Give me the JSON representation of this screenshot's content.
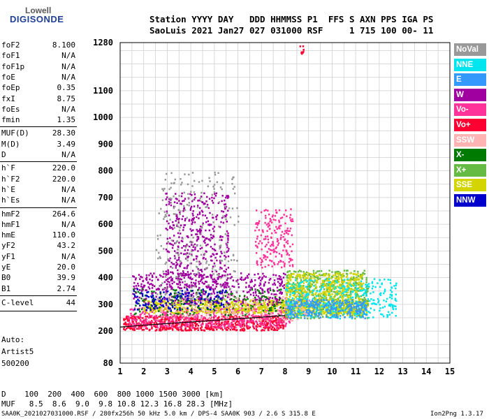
{
  "logo": {
    "line1": "Lowell",
    "line2": "DIGISONDE"
  },
  "header": {
    "row1": "Station YYYY DAY   DDD HHMMSS P1  FFS S AXN PPS IGA PS",
    "row2": "SaoLuis 2021 Jan27 027 031000 RSF     1 715 100 00- 11"
  },
  "params_group1": [
    {
      "name": "foF2",
      "value": "8.100"
    },
    {
      "name": "foF1",
      "value": "N/A"
    },
    {
      "name": "foF1p",
      "value": "N/A"
    },
    {
      "name": "foE",
      "value": "N/A"
    },
    {
      "name": "foEp",
      "value": "0.35"
    },
    {
      "name": "fxI",
      "value": "8.75"
    },
    {
      "name": "foEs",
      "value": "N/A"
    },
    {
      "name": "fmin",
      "value": "1.35"
    }
  ],
  "params_group2": [
    {
      "name": "MUF(D)",
      "value": "28.30"
    },
    {
      "name": "M(D)",
      "value": "3.49"
    },
    {
      "name": "D",
      "value": "N/A"
    }
  ],
  "params_group3": [
    {
      "name": "h`F",
      "value": "220.0"
    },
    {
      "name": "h`F2",
      "value": "220.0"
    },
    {
      "name": "h`E",
      "value": "N/A"
    },
    {
      "name": "h`Es",
      "value": "N/A"
    }
  ],
  "params_group4": [
    {
      "name": "hmF2",
      "value": "264.6"
    },
    {
      "name": "hmF1",
      "value": "N/A"
    },
    {
      "name": "hmE",
      "value": "110.0"
    },
    {
      "name": "yF2",
      "value": "43.2"
    },
    {
      "name": "yF1",
      "value": "N/A"
    },
    {
      "name": "yE",
      "value": "20.0"
    },
    {
      "name": "B0",
      "value": "39.9"
    },
    {
      "name": "B1",
      "value": "2.74"
    }
  ],
  "clevel": {
    "name": "C-level",
    "value": "44"
  },
  "auto": {
    "line1": "Auto:",
    "line2": "Artist5",
    "line3": "500200"
  },
  "bottom": {
    "d_row": "D    100  200  400  600  800 1000 1500 3000 [km]",
    "muf_row": "MUF   8.5  8.6  9.0  9.8 10.8 12.3 16.8 28.3 [MHz]"
  },
  "footer": {
    "left": "SAA0K_2021027031000.RSF / 280fx256h 50 kHz 5.0 km / DPS-4 SAA0K 903 / 2.6 S 315.8 E",
    "right": "Ion2Png 1.3.17"
  },
  "legend": [
    {
      "label": "NoVal",
      "color": "#999999"
    },
    {
      "label": "NNE",
      "color": "#00e5ee"
    },
    {
      "label": "E",
      "color": "#3399ff"
    },
    {
      "label": "W",
      "color": "#a000a0"
    },
    {
      "label": "Vo-",
      "color": "#ff3399"
    },
    {
      "label": "Vo+",
      "color": "#ff0033"
    },
    {
      "label": "SSW",
      "color": "#ffb3b3"
    },
    {
      "label": "X-",
      "color": "#007a00"
    },
    {
      "label": "X+",
      "color": "#66bb44"
    },
    {
      "label": "SSE",
      "color": "#d4d400"
    },
    {
      "label": "NNW",
      "color": "#0000cc"
    }
  ],
  "chart_data": {
    "type": "scatter",
    "title": "",
    "xlabel": "",
    "ylabel": "",
    "xlim": [
      1,
      15
    ],
    "ylim": [
      80,
      1280
    ],
    "x_ticks": [
      1,
      2,
      3,
      4,
      5,
      6,
      7,
      8,
      9,
      10,
      11,
      12,
      13,
      14,
      15
    ],
    "y_ticks": [
      80,
      200,
      300,
      400,
      500,
      600,
      700,
      800,
      900,
      1000,
      1100,
      1280
    ],
    "grid": true,
    "trace_line": {
      "name": "",
      "x": [
        1.0,
        2.0,
        3.0,
        4.0,
        5.0,
        6.0,
        7.0,
        8.0
      ],
      "y": [
        215,
        222,
        228,
        234,
        240,
        246,
        252,
        258
      ]
    },
    "clusters": [
      {
        "color": "#ff0033",
        "fmin": 1.1,
        "fmax": 8.0,
        "hmin": 205,
        "hmax": 260,
        "n": 700
      },
      {
        "color": "#ff3399",
        "fmin": 1.3,
        "fmax": 8.2,
        "hmin": 215,
        "hmax": 290,
        "n": 500
      },
      {
        "color": "#d4d400",
        "fmin": 2.0,
        "fmax": 11.5,
        "hmin": 270,
        "hmax": 320,
        "n": 800
      },
      {
        "color": "#a000a0",
        "fmin": 1.5,
        "fmax": 8.0,
        "hmin": 300,
        "hmax": 420,
        "n": 500
      },
      {
        "color": "#a000a0",
        "fmin": 2.9,
        "fmax": 5.6,
        "hmin": 360,
        "hmax": 720,
        "n": 450
      },
      {
        "color": "#66bb44",
        "fmin": 8.0,
        "fmax": 11.5,
        "hmin": 250,
        "hmax": 430,
        "n": 600
      },
      {
        "color": "#d4d400",
        "fmin": 8.0,
        "fmax": 11.3,
        "hmin": 260,
        "hmax": 420,
        "n": 600
      },
      {
        "color": "#00e5ee",
        "fmin": 8.0,
        "fmax": 12.7,
        "hmin": 250,
        "hmax": 400,
        "n": 350
      },
      {
        "color": "#3399ff",
        "fmin": 8.0,
        "fmax": 11.5,
        "hmin": 250,
        "hmax": 320,
        "n": 250
      },
      {
        "color": "#ff3399",
        "fmin": 6.7,
        "fmax": 8.3,
        "hmin": 440,
        "hmax": 660,
        "n": 200
      },
      {
        "color": "#007a00",
        "fmin": 1.5,
        "fmax": 8.0,
        "hmin": 260,
        "hmax": 360,
        "n": 200
      },
      {
        "color": "#ffb3b3",
        "fmin": 2.5,
        "fmax": 9.0,
        "hmin": 240,
        "hmax": 340,
        "n": 150
      },
      {
        "color": "#0000cc",
        "fmin": 1.5,
        "fmax": 5.5,
        "hmin": 280,
        "hmax": 360,
        "n": 150
      },
      {
        "color": "#999999",
        "fmin": 2.5,
        "fmax": 6.0,
        "hmin": 300,
        "hmax": 800,
        "n": 250
      },
      {
        "color": "#ff0033",
        "fmin": 8.6,
        "fmax": 8.8,
        "hmin": 1240,
        "hmax": 1270,
        "n": 8
      }
    ]
  }
}
